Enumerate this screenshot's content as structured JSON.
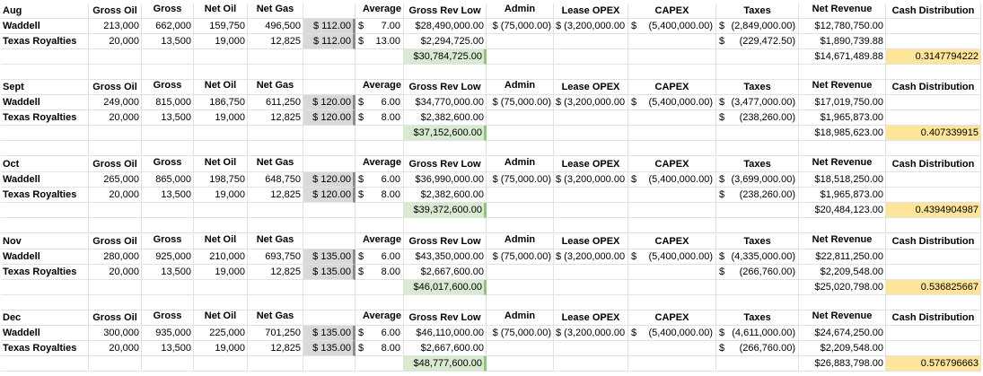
{
  "headers": {
    "gross_oil": "Gross Oil",
    "gross": "Gross",
    "net_oil": "Net Oil",
    "net_gas": "Net Gas",
    "average": "Average",
    "gross_rev_low": "Gross Rev Low",
    "admin": "Admin",
    "lease_opex": "Lease OPEX",
    "capex": "CAPEX",
    "taxes": "Taxes",
    "net_revenue": "Net Revenue",
    "cash_distribution": "Cash Distribution"
  },
  "months": [
    {
      "month": "Aug",
      "rows": [
        {
          "name": "Waddell",
          "gross_oil": "213,000",
          "gross": "662,000",
          "net_oil": "159,750",
          "net_gas": "496,500",
          "price": "$ 112.00",
          "avg_dollar": "$",
          "avg_val": "7.00",
          "gross_rev": "$28,490,000.00",
          "admin": "$ (75,000.00)",
          "lease_opex": "$ (3,200,000.00",
          "capex_dollar": "$",
          "capex_val": "(5,400,000.00)",
          "tax_dollar": "$",
          "tax_val": "(2,849,000.00)",
          "net_rev": "$12,780,750.00"
        },
        {
          "name": "Texas Royalties",
          "gross_oil": "20,000",
          "gross": "13,500",
          "net_oil": "19,000",
          "net_gas": "12,825",
          "price": "$ 112.00",
          "avg_dollar": "$",
          "avg_val": "13.00",
          "gross_rev": "$2,294,725.00",
          "admin": "",
          "lease_opex": "",
          "capex_dollar": "",
          "capex_val": "",
          "tax_dollar": "$",
          "tax_val": "(229,472.50)",
          "net_rev": "$1,890,739.88"
        }
      ],
      "total_gross_rev": "$30,784,725.00",
      "total_net_rev": "$14,671,489.88",
      "cash_distribution": "0.3147794222"
    },
    {
      "month": "Sept",
      "rows": [
        {
          "name": "Waddell",
          "gross_oil": "249,000",
          "gross": "815,000",
          "net_oil": "186,750",
          "net_gas": "611,250",
          "price": "$ 120.00",
          "avg_dollar": "$",
          "avg_val": "6.00",
          "gross_rev": "$34,770,000.00",
          "admin": "$ (75,000.00)",
          "lease_opex": "$ (3,200,000.00",
          "capex_dollar": "$",
          "capex_val": "(5,400,000.00)",
          "tax_dollar": "$",
          "tax_val": "(3,477,000.00)",
          "net_rev": "$17,019,750.00"
        },
        {
          "name": "Texas Royalties",
          "gross_oil": "20,000",
          "gross": "13,500",
          "net_oil": "19,000",
          "net_gas": "12,825",
          "price": "$ 120.00",
          "avg_dollar": "$",
          "avg_val": "8.00",
          "gross_rev": "$2,382,600.00",
          "admin": "",
          "lease_opex": "",
          "capex_dollar": "",
          "capex_val": "",
          "tax_dollar": "$",
          "tax_val": "(238,260.00)",
          "net_rev": "$1,965,873.00"
        }
      ],
      "total_gross_rev": "$37,152,600.00",
      "total_net_rev": "$18,985,623.00",
      "cash_distribution": "0.407339915"
    },
    {
      "month": "Oct",
      "rows": [
        {
          "name": "Waddell",
          "gross_oil": "265,000",
          "gross": "865,000",
          "net_oil": "198,750",
          "net_gas": "648,750",
          "price": "$ 120.00",
          "avg_dollar": "$",
          "avg_val": "6.00",
          "gross_rev": "$36,990,000.00",
          "admin": "$ (75,000.00)",
          "lease_opex": "$ (3,200,000.00",
          "capex_dollar": "$",
          "capex_val": "(5,400,000.00)",
          "tax_dollar": "$",
          "tax_val": "(3,699,000.00)",
          "net_rev": "$18,518,250.00"
        },
        {
          "name": "Texas Royalties",
          "gross_oil": "20,000",
          "gross": "13,500",
          "net_oil": "19,000",
          "net_gas": "12,825",
          "price": "$ 120.00",
          "avg_dollar": "$",
          "avg_val": "8.00",
          "gross_rev": "$2,382,600.00",
          "admin": "",
          "lease_opex": "",
          "capex_dollar": "",
          "capex_val": "",
          "tax_dollar": "$",
          "tax_val": "(238,260.00)",
          "net_rev": "$1,965,873.00"
        }
      ],
      "total_gross_rev": "$39,372,600.00",
      "total_net_rev": "$20,484,123.00",
      "cash_distribution": "0.4394904987"
    },
    {
      "month": "Nov",
      "rows": [
        {
          "name": "Waddell",
          "gross_oil": "280,000",
          "gross": "925,000",
          "net_oil": "210,000",
          "net_gas": "693,750",
          "price": "$ 135.00",
          "avg_dollar": "$",
          "avg_val": "6.00",
          "gross_rev": "$43,350,000.00",
          "admin": "$ (75,000.00)",
          "lease_opex": "$ (3,200,000.00",
          "capex_dollar": "$",
          "capex_val": "(5,400,000.00)",
          "tax_dollar": "$",
          "tax_val": "(4,335,000.00)",
          "net_rev": "$22,811,250.00"
        },
        {
          "name": "Texas Royalties",
          "gross_oil": "20,000",
          "gross": "13,500",
          "net_oil": "19,000",
          "net_gas": "12,825",
          "price": "$ 135.00",
          "avg_dollar": "$",
          "avg_val": "8.00",
          "gross_rev": "$2,667,600.00",
          "admin": "",
          "lease_opex": "",
          "capex_dollar": "",
          "capex_val": "",
          "tax_dollar": "$",
          "tax_val": "(266,760.00)",
          "net_rev": "$2,209,548.00"
        }
      ],
      "total_gross_rev": "$46,017,600.00",
      "total_net_rev": "$25,020,798.00",
      "cash_distribution": "0.536825667"
    },
    {
      "month": "Dec",
      "rows": [
        {
          "name": "Waddell",
          "gross_oil": "300,000",
          "gross": "935,000",
          "net_oil": "225,000",
          "net_gas": "701,250",
          "price": "$ 135.00",
          "avg_dollar": "$",
          "avg_val": "6.00",
          "gross_rev": "$46,110,000.00",
          "admin": "$ (75,000.00)",
          "lease_opex": "$ (3,200,000.00",
          "capex_dollar": "$",
          "capex_val": "(5,400,000.00)",
          "tax_dollar": "$",
          "tax_val": "(4,611,000.00)",
          "net_rev": "$24,674,250.00"
        },
        {
          "name": "Texas Royalties",
          "gross_oil": "20,000",
          "gross": "13,500",
          "net_oil": "19,000",
          "net_gas": "12,825",
          "price": "$ 135.00",
          "avg_dollar": "$",
          "avg_val": "8.00",
          "gross_rev": "$2,667,600.00",
          "admin": "",
          "lease_opex": "",
          "capex_dollar": "",
          "capex_val": "",
          "tax_dollar": "$",
          "tax_val": "(266,760.00)",
          "net_rev": "$2,209,548.00"
        }
      ],
      "total_gross_rev": "$48,777,600.00",
      "total_net_rev": "$26,883,798.00",
      "cash_distribution": "0.576796663"
    }
  ],
  "colors": {
    "price_fill": "#d9d9d9",
    "total_fill": "#d9ead3",
    "cash_fill": "#ffe599",
    "gridline": "#e2e2e2"
  }
}
